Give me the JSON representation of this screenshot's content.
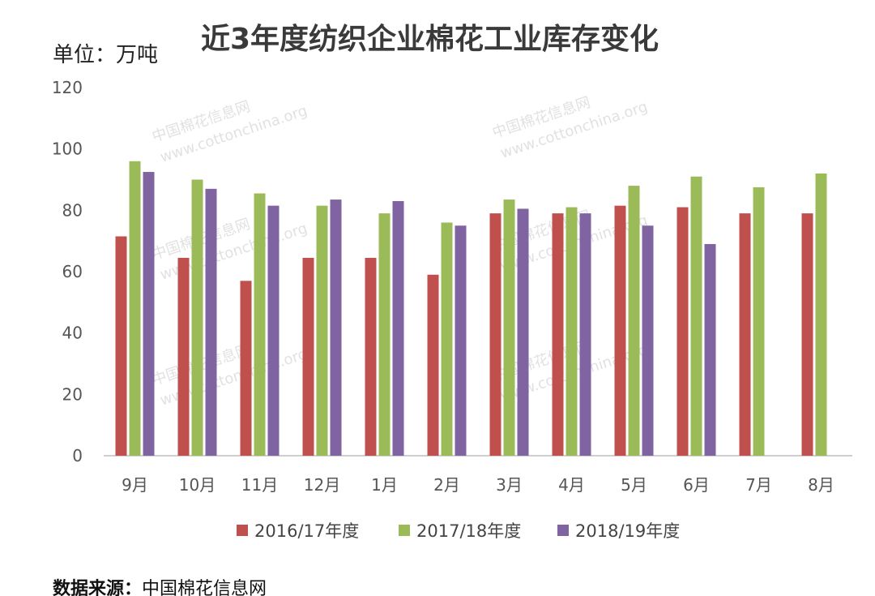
{
  "title": "近3年度纺织企业棉花工业库存变化",
  "unit_label": "单位：万吨",
  "source": {
    "label": "数据来源：",
    "value": "中国棉花信息网"
  },
  "watermark": {
    "brand": "中国棉花信息网",
    "url": "www.cottonchina.org"
  },
  "chart_data": {
    "type": "bar",
    "categories": [
      "9月",
      "10月",
      "11月",
      "12月",
      "1月",
      "2月",
      "3月",
      "4月",
      "5月",
      "6月",
      "7月",
      "8月"
    ],
    "series": [
      {
        "name": "2016/17年度",
        "color": "#c0504d",
        "values": [
          71.5,
          64.5,
          57,
          64.5,
          64.5,
          59,
          79,
          79,
          81.5,
          81,
          79,
          79
        ]
      },
      {
        "name": "2017/18年度",
        "color": "#9bbb59",
        "values": [
          96,
          90,
          85.5,
          81.5,
          79,
          76,
          83.5,
          81,
          88,
          91,
          87.5,
          92
        ]
      },
      {
        "name": "2018/19年度",
        "color": "#8064a2",
        "values": [
          92.5,
          87,
          81.5,
          83.5,
          83,
          75,
          80.5,
          79,
          75,
          69,
          null,
          null
        ]
      }
    ],
    "yticks": [
      0,
      20,
      40,
      60,
      80,
      100,
      120
    ],
    "ylim": [
      0,
      120
    ],
    "grid": false,
    "legend": "bottom"
  }
}
